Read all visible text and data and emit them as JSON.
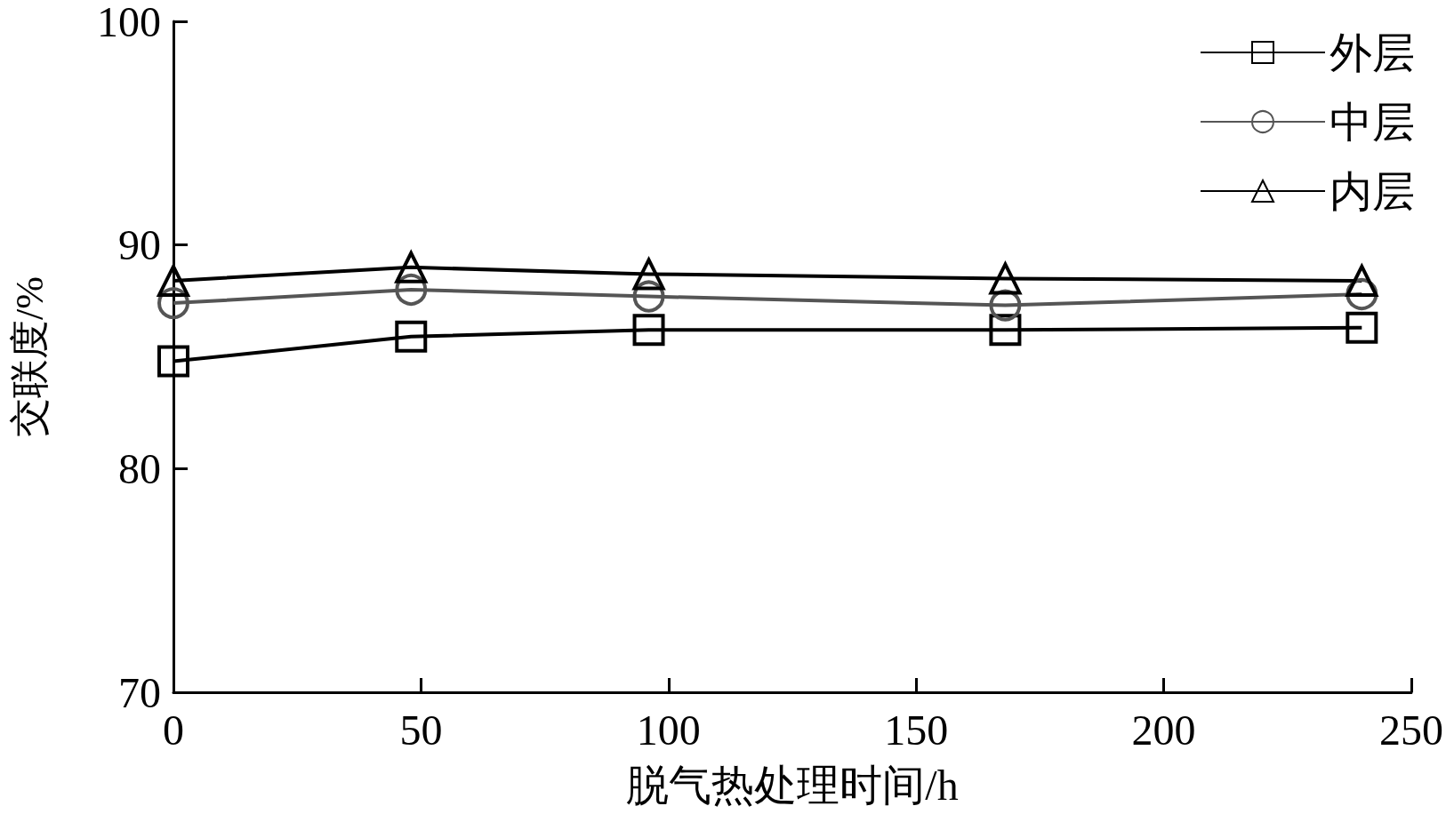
{
  "chart_data": {
    "type": "line",
    "xlabel": "脱气热处理时间/h",
    "ylabel": "交联度/%",
    "x": [
      0,
      48,
      96,
      168,
      240
    ],
    "series": [
      {
        "name": "外层",
        "color": "#000000",
        "marker": "square",
        "values": [
          84.8,
          85.9,
          86.2,
          86.2,
          86.3
        ]
      },
      {
        "name": "中层",
        "color": "#555555",
        "marker": "circle",
        "values": [
          87.4,
          88.0,
          87.7,
          87.3,
          87.8
        ]
      },
      {
        "name": "内层",
        "color": "#000000",
        "marker": "triangle",
        "values": [
          88.4,
          89.0,
          88.7,
          88.5,
          88.4
        ]
      }
    ],
    "xlim": [
      0,
      250
    ],
    "xticks": [
      0,
      50,
      100,
      150,
      200,
      250
    ],
    "ylim": [
      70,
      100
    ],
    "yticks": [
      70,
      80,
      90,
      100
    ],
    "grid": false,
    "legend": "top right",
    "line_style": "solid"
  }
}
